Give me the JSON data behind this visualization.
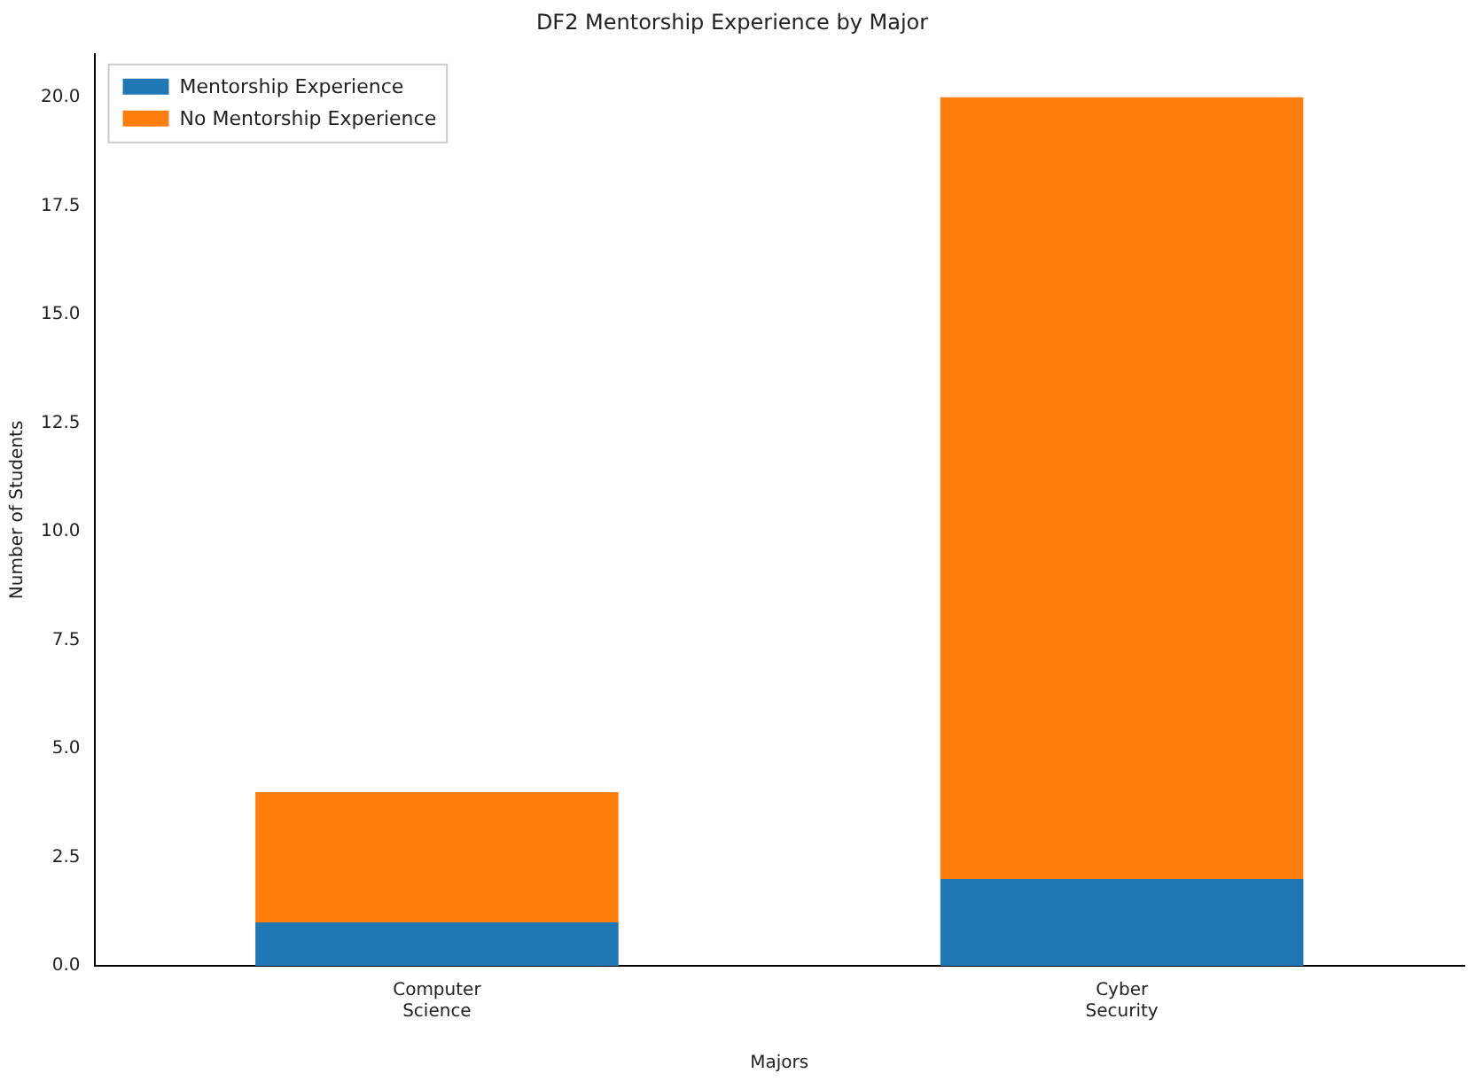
{
  "chart_data": {
    "type": "bar",
    "title": "DF2 Mentorship Experience by Major",
    "xlabel": "Majors",
    "ylabel": "Number of Students",
    "categories": [
      "Computer Science",
      "Cyber Security"
    ],
    "series": [
      {
        "name": "Mentorship Experience",
        "color": "#1f77b4",
        "values": [
          1,
          2
        ]
      },
      {
        "name": "No Mentorship Experience",
        "color": "#ff7f0e",
        "values": [
          3,
          18
        ]
      }
    ],
    "stacked": true,
    "ylim": [
      0,
      21
    ],
    "yticks": [
      {
        "value": 0,
        "label": "0.0"
      },
      {
        "value": 2.5,
        "label": "2.5"
      },
      {
        "value": 5,
        "label": "5.0"
      },
      {
        "value": 7.5,
        "label": "7.5"
      },
      {
        "value": 10,
        "label": "10.0"
      },
      {
        "value": 12.5,
        "label": "12.5"
      },
      {
        "value": 15,
        "label": "15.0"
      },
      {
        "value": 17.5,
        "label": "17.5"
      },
      {
        "value": 20,
        "label": "20.0"
      }
    ],
    "grid": false,
    "legend": "top left"
  }
}
